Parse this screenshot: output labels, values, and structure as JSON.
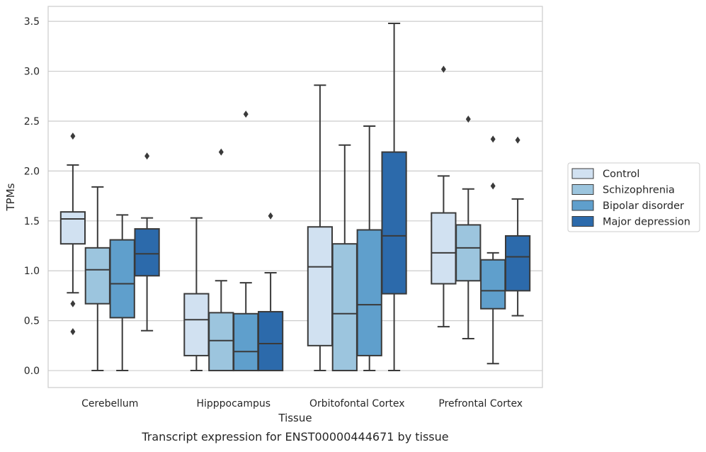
{
  "chart_data": {
    "type": "box",
    "xlabel": "Tissue",
    "ylabel": "TPMs",
    "caption": "Transcript expression for ENST00000444671 by tissue",
    "ylim": [
      -0.17,
      3.65
    ],
    "yticks": [
      0.0,
      0.5,
      1.0,
      1.5,
      2.0,
      2.5,
      3.0,
      3.5
    ],
    "ytick_labels": [
      "0.0",
      "0.5",
      "1.0",
      "1.5",
      "2.0",
      "2.5",
      "3.0",
      "3.5"
    ],
    "grid": "horizontal",
    "legend_position": "right",
    "categories": [
      "Cerebellum",
      "Hipppocampus",
      "Orbitofontal Cortex",
      "Prefrontal Cortex"
    ],
    "series": [
      {
        "name": "Control",
        "color": "#d1e1f1",
        "boxes": [
          {
            "whislo": 0.78,
            "q1": 1.27,
            "med": 1.52,
            "q3": 1.59,
            "whishi": 2.06,
            "fliers": [
              2.35,
              0.67,
              0.39
            ]
          },
          {
            "whislo": 0.0,
            "q1": 0.15,
            "med": 0.51,
            "q3": 0.77,
            "whishi": 1.53,
            "fliers": []
          },
          {
            "whislo": 0.0,
            "q1": 0.25,
            "med": 1.04,
            "q3": 1.44,
            "whishi": 2.86,
            "fliers": []
          },
          {
            "whislo": 0.44,
            "q1": 0.87,
            "med": 1.18,
            "q3": 1.58,
            "whishi": 1.95,
            "fliers": [
              3.02
            ]
          }
        ]
      },
      {
        "name": "Schizophrenia",
        "color": "#9cc5de",
        "boxes": [
          {
            "whislo": 0.0,
            "q1": 0.67,
            "med": 1.01,
            "q3": 1.23,
            "whishi": 1.84,
            "fliers": []
          },
          {
            "whislo": 0.0,
            "q1": 0.0,
            "med": 0.3,
            "q3": 0.58,
            "whishi": 0.9,
            "fliers": [
              2.19
            ]
          },
          {
            "whislo": 0.0,
            "q1": 0.0,
            "med": 0.57,
            "q3": 1.27,
            "whishi": 2.26,
            "fliers": []
          },
          {
            "whislo": 0.32,
            "q1": 0.9,
            "med": 1.23,
            "q3": 1.46,
            "whishi": 1.82,
            "fliers": [
              2.52
            ]
          }
        ]
      },
      {
        "name": "Bipolar disorder",
        "color": "#5f9fcc",
        "boxes": [
          {
            "whislo": 0.0,
            "q1": 0.53,
            "med": 0.87,
            "q3": 1.31,
            "whishi": 1.56,
            "fliers": []
          },
          {
            "whislo": 0.0,
            "q1": 0.0,
            "med": 0.19,
            "q3": 0.57,
            "whishi": 0.88,
            "fliers": [
              2.57
            ]
          },
          {
            "whislo": 0.0,
            "q1": 0.15,
            "med": 0.66,
            "q3": 1.41,
            "whishi": 2.45,
            "fliers": []
          },
          {
            "whislo": 0.07,
            "q1": 0.62,
            "med": 0.8,
            "q3": 1.11,
            "whishi": 1.18,
            "fliers": [
              2.32,
              1.85
            ]
          }
        ]
      },
      {
        "name": "Major depression",
        "color": "#2c6aab",
        "boxes": [
          {
            "whislo": 0.4,
            "q1": 0.95,
            "med": 1.17,
            "q3": 1.42,
            "whishi": 1.53,
            "fliers": [
              2.15
            ]
          },
          {
            "whislo": 0.0,
            "q1": 0.0,
            "med": 0.27,
            "q3": 0.59,
            "whishi": 0.98,
            "fliers": [
              1.55
            ]
          },
          {
            "whislo": 0.0,
            "q1": 0.77,
            "med": 1.35,
            "q3": 2.19,
            "whishi": 3.48,
            "fliers": []
          },
          {
            "whislo": 0.55,
            "q1": 0.8,
            "med": 1.14,
            "q3": 1.35,
            "whishi": 1.72,
            "fliers": [
              2.31
            ]
          }
        ]
      }
    ]
  }
}
